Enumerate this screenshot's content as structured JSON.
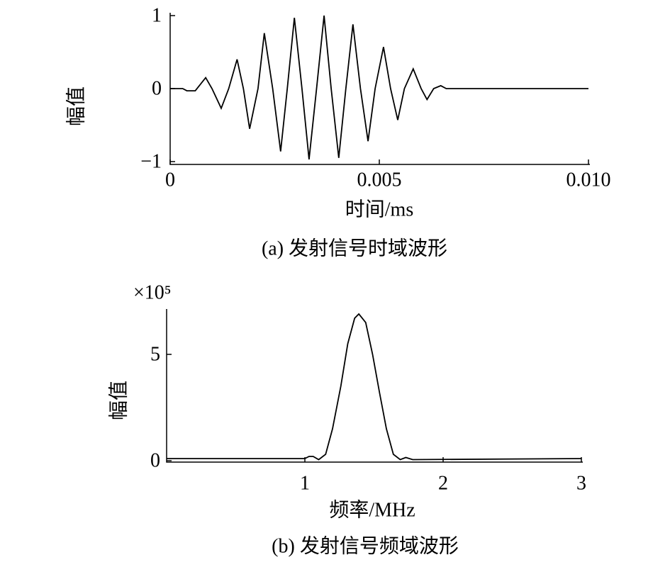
{
  "chart_data": [
    {
      "type": "line",
      "caption": "(a) 发射信号时域波形",
      "x_label": "时间/ms",
      "y_label": "幅值",
      "color": "#000000",
      "x": [
        0,
        0.0003,
        0.0004,
        0.0006,
        0.00085,
        0.001,
        0.00122,
        0.0014,
        0.0016,
        0.00175,
        0.0019,
        0.0021,
        0.00225,
        0.00245,
        0.00264,
        0.0028,
        0.00297,
        0.00315,
        0.00332,
        0.0035,
        0.00368,
        0.00385,
        0.00403,
        0.0042,
        0.00437,
        0.00455,
        0.00473,
        0.0049,
        0.0051,
        0.00527,
        0.00544,
        0.0056,
        0.00581,
        0.006,
        0.00614,
        0.0063,
        0.00647,
        0.0066,
        0.01
      ],
      "values": [
        0,
        0,
        -0.03,
        -0.03,
        0.15,
        0,
        -0.27,
        0,
        0.4,
        0,
        -0.55,
        0,
        0.76,
        0,
        -0.86,
        0,
        0.97,
        0,
        -0.97,
        0,
        1.0,
        0,
        -0.95,
        0,
        0.88,
        0,
        -0.72,
        0,
        0.57,
        0,
        -0.43,
        0,
        0.27,
        0,
        -0.15,
        0,
        0.04,
        0,
        0
      ],
      "xlim": [
        0,
        0.01
      ],
      "xticks": [
        0,
        0.005,
        {
          "value": 0.01,
          "label": "0.010"
        }
      ],
      "ylim": [
        -1,
        1
      ],
      "yticks": [
        1,
        0,
        {
          "value": -1,
          "label": "−1"
        }
      ]
    },
    {
      "type": "line",
      "caption": "(b) 发射信号频域波形",
      "x_label": "频率/MHz",
      "y_label": "幅值",
      "y_scale_label": "×10⁵",
      "color": "#000000",
      "x": [
        0,
        1.0,
        1.03,
        1.06,
        1.1,
        1.15,
        1.2,
        1.26,
        1.31,
        1.36,
        1.39,
        1.44,
        1.49,
        1.54,
        1.59,
        1.64,
        1.69,
        1.73,
        1.78,
        3
      ],
      "values": [
        0.1,
        0.1,
        0.2,
        0.2,
        0.05,
        0.3,
        1.5,
        3.5,
        5.5,
        6.7,
        6.9,
        6.5,
        5.0,
        3.2,
        1.5,
        0.3,
        0.05,
        0.15,
        0.05,
        0.1
      ],
      "xlim": [
        0,
        3
      ],
      "xticks": [
        1,
        2,
        3
      ],
      "ylim": [
        0,
        7
      ],
      "yticks": [
        0,
        5
      ]
    }
  ]
}
